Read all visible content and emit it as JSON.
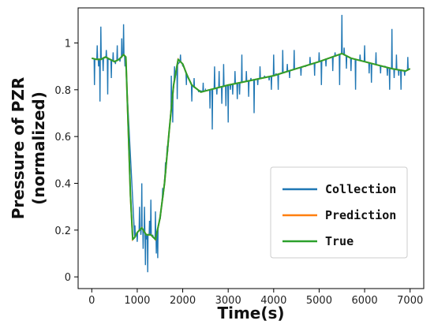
{
  "chart_data": {
    "type": "line",
    "xlabel": "Time(s)",
    "ylabel": "Pressure of PZR (normalized)",
    "ylabel_lines": [
      "Pressure of PZR",
      "(normalized)"
    ],
    "xlim": [
      -300,
      7300
    ],
    "ylim": [
      -0.05,
      1.15
    ],
    "xticks": [
      0,
      1000,
      2000,
      3000,
      4000,
      5000,
      6000,
      7000
    ],
    "yticks": [
      0,
      0.2,
      0.4,
      0.6,
      0.8,
      1
    ],
    "ytick_labels": [
      "0",
      "0.2",
      "0.4",
      "0.6",
      "0.8",
      "1"
    ],
    "grid": false,
    "legend_position": "lower-right",
    "series": [
      {
        "name": "Collection",
        "color": "#1f77b4",
        "base_ref": "True",
        "spikes": [
          [
            60,
            0.82
          ],
          [
            120,
            0.99
          ],
          [
            150,
            0.9
          ],
          [
            180,
            0.75
          ],
          [
            200,
            1.07
          ],
          [
            250,
            0.88
          ],
          [
            320,
            0.97
          ],
          [
            350,
            0.78
          ],
          [
            380,
            0.93
          ],
          [
            430,
            0.85
          ],
          [
            470,
            0.96
          ],
          [
            520,
            0.91
          ],
          [
            560,
            0.99
          ],
          [
            620,
            0.92
          ],
          [
            660,
            1.02
          ],
          [
            700,
            1.08
          ],
          [
            730,
            0.9
          ],
          [
            950,
            0.22
          ],
          [
            1000,
            0.15
          ],
          [
            1050,
            0.3
          ],
          [
            1080,
            0.18
          ],
          [
            1100,
            0.4
          ],
          [
            1130,
            0.12
          ],
          [
            1160,
            0.3
          ],
          [
            1180,
            0.05
          ],
          [
            1200,
            0.16
          ],
          [
            1230,
            0.02
          ],
          [
            1270,
            0.24
          ],
          [
            1300,
            0.33
          ],
          [
            1340,
            0.18
          ],
          [
            1400,
            0.28
          ],
          [
            1420,
            0.1
          ],
          [
            1450,
            0.08
          ],
          [
            1500,
            0.25
          ],
          [
            1560,
            0.38
          ],
          [
            1620,
            0.49
          ],
          [
            1660,
            0.56
          ],
          [
            1750,
            0.86
          ],
          [
            1780,
            0.66
          ],
          [
            1820,
            0.9
          ],
          [
            1880,
            0.76
          ],
          [
            1950,
            0.95
          ],
          [
            2000,
            0.9
          ],
          [
            2080,
            0.82
          ],
          [
            2200,
            0.75
          ],
          [
            2250,
            0.85
          ],
          [
            2350,
            0.79
          ],
          [
            2450,
            0.83
          ],
          [
            2500,
            0.8
          ],
          [
            2600,
            0.72
          ],
          [
            2650,
            0.63
          ],
          [
            2700,
            0.9
          ],
          [
            2750,
            0.78
          ],
          [
            2800,
            0.88
          ],
          [
            2860,
            0.74
          ],
          [
            2900,
            0.91
          ],
          [
            2950,
            0.73
          ],
          [
            3000,
            0.66
          ],
          [
            3050,
            0.8
          ],
          [
            3100,
            0.78
          ],
          [
            3150,
            0.88
          ],
          [
            3200,
            0.76
          ],
          [
            3250,
            0.78
          ],
          [
            3300,
            0.95
          ],
          [
            3400,
            0.88
          ],
          [
            3450,
            0.77
          ],
          [
            3500,
            0.85
          ],
          [
            3570,
            0.7
          ],
          [
            3650,
            0.82
          ],
          [
            3700,
            0.9
          ],
          [
            3800,
            0.86
          ],
          [
            3900,
            0.84
          ],
          [
            3950,
            0.8
          ],
          [
            4000,
            0.95
          ],
          [
            4050,
            0.87
          ],
          [
            4100,
            0.8
          ],
          [
            4200,
            0.97
          ],
          [
            4300,
            0.91
          ],
          [
            4350,
            0.85
          ],
          [
            4450,
            0.97
          ],
          [
            4500,
            0.89
          ],
          [
            4600,
            0.86
          ],
          [
            4700,
            0.9
          ],
          [
            4800,
            0.94
          ],
          [
            4900,
            0.86
          ],
          [
            5000,
            0.96
          ],
          [
            5050,
            0.82
          ],
          [
            5150,
            0.9
          ],
          [
            5300,
            0.88
          ],
          [
            5350,
            0.96
          ],
          [
            5450,
            0.82
          ],
          [
            5500,
            1.12
          ],
          [
            5550,
            0.98
          ],
          [
            5600,
            0.89
          ],
          [
            5700,
            0.88
          ],
          [
            5800,
            0.8
          ],
          [
            5900,
            0.95
          ],
          [
            6000,
            0.99
          ],
          [
            6100,
            0.87
          ],
          [
            6150,
            0.83
          ],
          [
            6250,
            0.96
          ],
          [
            6350,
            0.87
          ],
          [
            6450,
            0.9
          ],
          [
            6500,
            0.86
          ],
          [
            6550,
            0.8
          ],
          [
            6600,
            1.06
          ],
          [
            6650,
            0.85
          ],
          [
            6700,
            0.95
          ],
          [
            6750,
            0.86
          ],
          [
            6800,
            0.8
          ],
          [
            6880,
            0.86
          ],
          [
            6950,
            0.94
          ]
        ]
      },
      {
        "name": "Prediction",
        "color": "#ff7f0e",
        "base_ref": "True"
      },
      {
        "name": "True",
        "color": "#2ca02c",
        "x": [
          0,
          100,
          200,
          300,
          400,
          500,
          600,
          700,
          750,
          800,
          850,
          900,
          950,
          1000,
          1100,
          1200,
          1300,
          1400,
          1500,
          1600,
          1700,
          1800,
          1900,
          2000,
          2100,
          2200,
          2400,
          2600,
          3000,
          3500,
          4000,
          4500,
          5000,
          5500,
          5700,
          6000,
          6300,
          6600,
          6900,
          7000
        ],
        "values": [
          0.935,
          0.93,
          0.93,
          0.94,
          0.93,
          0.92,
          0.93,
          0.95,
          0.94,
          0.65,
          0.35,
          0.16,
          0.17,
          0.19,
          0.21,
          0.18,
          0.18,
          0.16,
          0.25,
          0.4,
          0.62,
          0.82,
          0.93,
          0.91,
          0.86,
          0.82,
          0.79,
          0.8,
          0.82,
          0.84,
          0.86,
          0.89,
          0.92,
          0.955,
          0.935,
          0.92,
          0.905,
          0.89,
          0.88,
          0.89
        ]
      }
    ]
  }
}
